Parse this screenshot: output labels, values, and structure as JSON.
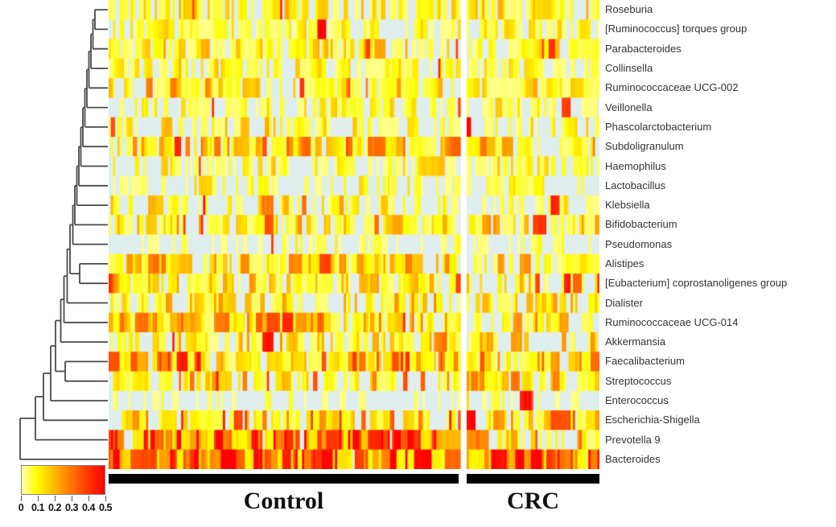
{
  "figure": {
    "kind": "clustered-abundance-heatmap",
    "background": "#ffffff"
  },
  "chart_data": {
    "type": "heatmap",
    "title": "",
    "rows": [
      "Roseburia",
      "[Ruminococcus] torques group",
      "Parabacteroides",
      "Collinsella",
      "Ruminococcaceae UCG-002",
      "Veillonella",
      "Phascolarctobacterium",
      "Subdoligranulum",
      "Haemophilus",
      "Lactobacillus",
      "Klebsiella",
      "Bifidobacterium",
      "Pseudomonas",
      "Alistipes",
      "[Eubacterium] coprostanoligenes group",
      "Dialister",
      "Ruminococcaceae UCG-014",
      "Akkermansia",
      "Faecalibacterium",
      "Streptococcus",
      "Enterococcus",
      "Escherichia-Shigella",
      "Prevotella 9",
      "Bacteroides"
    ],
    "col_groups": [
      {
        "label": "Control",
        "n_samples": 160
      },
      {
        "label": "CRC",
        "n_samples": 60
      }
    ],
    "legend": {
      "min": 0,
      "max": 0.5,
      "tick_labels": [
        "0",
        "0.1",
        "0.2",
        "0.3",
        "0.4",
        "0.5"
      ],
      "gradient_stops": [
        {
          "pos": 0.0,
          "color": "#FFFFB3"
        },
        {
          "pos": 0.18,
          "color": "#FFFF00"
        },
        {
          "pos": 0.45,
          "color": "#FFA500"
        },
        {
          "pos": 0.75,
          "color": "#FF4500"
        },
        {
          "pos": 1.0,
          "color": "#FF0000"
        }
      ],
      "zero_color": "#E0EEEE"
    },
    "row_profiles": [
      {
        "name": "Roseburia",
        "control": {
          "p0": 0.28,
          "mean": 0.09,
          "sp": 0.02
        },
        "crc": {
          "p0": 0.34,
          "mean": 0.08,
          "sp": 0.02
        }
      },
      {
        "name": "[Ruminococcus] torques group",
        "control": {
          "p0": 0.42,
          "mean": 0.06,
          "sp": 0.01
        },
        "crc": {
          "p0": 0.4,
          "mean": 0.06,
          "sp": 0.01
        }
      },
      {
        "name": "Parabacteroides",
        "control": {
          "p0": 0.32,
          "mean": 0.08,
          "sp": 0.02
        },
        "crc": {
          "p0": 0.35,
          "mean": 0.07,
          "sp": 0.02
        }
      },
      {
        "name": "Collinsella",
        "control": {
          "p0": 0.4,
          "mean": 0.07,
          "sp": 0.01
        },
        "crc": {
          "p0": 0.42,
          "mean": 0.06,
          "sp": 0.01
        }
      },
      {
        "name": "Ruminococcaceae UCG-002",
        "control": {
          "p0": 0.25,
          "mean": 0.1,
          "sp": 0.02
        },
        "crc": {
          "p0": 0.34,
          "mean": 0.08,
          "sp": 0.02
        }
      },
      {
        "name": "Veillonella",
        "control": {
          "p0": 0.5,
          "mean": 0.06,
          "sp": 0.02
        },
        "crc": {
          "p0": 0.45,
          "mean": 0.06,
          "sp": 0.02
        }
      },
      {
        "name": "Phascolarctobacterium",
        "control": {
          "p0": 0.45,
          "mean": 0.07,
          "sp": 0.02
        },
        "crc": {
          "p0": 0.48,
          "mean": 0.06,
          "sp": 0.02
        }
      },
      {
        "name": "Subdoligranulum",
        "control": {
          "p0": 0.15,
          "mean": 0.12,
          "sp": 0.03
        },
        "crc": {
          "p0": 0.2,
          "mean": 0.11,
          "sp": 0.02
        }
      },
      {
        "name": "Haemophilus",
        "control": {
          "p0": 0.55,
          "mean": 0.06,
          "sp": 0.02
        },
        "crc": {
          "p0": 0.5,
          "mean": 0.07,
          "sp": 0.02
        }
      },
      {
        "name": "Lactobacillus",
        "control": {
          "p0": 0.52,
          "mean": 0.06,
          "sp": 0.02
        },
        "crc": {
          "p0": 0.5,
          "mean": 0.06,
          "sp": 0.02
        }
      },
      {
        "name": "Klebsiella",
        "control": {
          "p0": 0.48,
          "mean": 0.08,
          "sp": 0.05
        },
        "crc": {
          "p0": 0.5,
          "mean": 0.07,
          "sp": 0.04
        }
      },
      {
        "name": "Bifidobacterium",
        "control": {
          "p0": 0.3,
          "mean": 0.09,
          "sp": 0.02
        },
        "crc": {
          "p0": 0.32,
          "mean": 0.09,
          "sp": 0.02
        }
      },
      {
        "name": "Pseudomonas",
        "control": {
          "p0": 0.82,
          "mean": 0.04,
          "sp": 0.05
        },
        "crc": {
          "p0": 0.85,
          "mean": 0.04,
          "sp": 0.04
        }
      },
      {
        "name": "Alistipes",
        "control": {
          "p0": 0.2,
          "mean": 0.11,
          "sp": 0.03
        },
        "crc": {
          "p0": 0.25,
          "mean": 0.1,
          "sp": 0.02
        }
      },
      {
        "name": "[Eubacterium] coprostanoligenes group",
        "control": {
          "p0": 0.3,
          "mean": 0.09,
          "sp": 0.02
        },
        "crc": {
          "p0": 0.35,
          "mean": 0.08,
          "sp": 0.02
        }
      },
      {
        "name": "Dialister",
        "control": {
          "p0": 0.35,
          "mean": 0.1,
          "sp": 0.03
        },
        "crc": {
          "p0": 0.4,
          "mean": 0.09,
          "sp": 0.03
        }
      },
      {
        "name": "Ruminococcaceae UCG-014",
        "control": {
          "p0": 0.22,
          "mean": 0.12,
          "sp": 0.03
        },
        "crc": {
          "p0": 0.28,
          "mean": 0.1,
          "sp": 0.02
        }
      },
      {
        "name": "Akkermansia",
        "control": {
          "p0": 0.4,
          "mean": 0.09,
          "sp": 0.03
        },
        "crc": {
          "p0": 0.42,
          "mean": 0.09,
          "sp": 0.03
        }
      },
      {
        "name": "Faecalibacterium",
        "control": {
          "p0": 0.08,
          "mean": 0.15,
          "sp": 0.04
        },
        "crc": {
          "p0": 0.12,
          "mean": 0.14,
          "sp": 0.03
        }
      },
      {
        "name": "Streptococcus",
        "control": {
          "p0": 0.28,
          "mean": 0.11,
          "sp": 0.04
        },
        "crc": {
          "p0": 0.25,
          "mean": 0.12,
          "sp": 0.04
        }
      },
      {
        "name": "Enterococcus",
        "control": {
          "p0": 0.85,
          "mean": 0.03,
          "sp": 0.02
        },
        "crc": {
          "p0": 0.8,
          "mean": 0.05,
          "sp": 0.03
        }
      },
      {
        "name": "Escherichia-Shigella",
        "control": {
          "p0": 0.28,
          "mean": 0.14,
          "sp": 0.08
        },
        "crc": {
          "p0": 0.35,
          "mean": 0.13,
          "sp": 0.07
        }
      },
      {
        "name": "Prevotella 9",
        "control": {
          "p0": 0.1,
          "mean": 0.28,
          "sp": 0.15
        },
        "crc": {
          "p0": 0.45,
          "mean": 0.14,
          "sp": 0.06
        }
      },
      {
        "name": "Bacteroides",
        "control": {
          "p0": 0.03,
          "mean": 0.28,
          "sp": 0.12
        },
        "crc": {
          "p0": 0.04,
          "mean": 0.3,
          "sp": 0.12
        }
      }
    ],
    "notable_blocks": [
      {
        "row": 20,
        "group": "crc",
        "from": 24,
        "to": 29,
        "value": 0.47
      },
      {
        "row": 22,
        "group": "crc",
        "from": 0,
        "to": 9,
        "value": 0.27
      },
      {
        "row": 10,
        "group": "control",
        "from": 70,
        "to": 74,
        "value": 0.3
      }
    ],
    "seed": 42
  },
  "dendrogram": {
    "color": "#4a4a4a",
    "stroke_width": 1.8,
    "merges": [
      [
        "l0",
        "l1",
        118
      ],
      [
        "m0",
        "l2",
        115.5
      ],
      [
        "m1",
        "l3",
        113
      ],
      [
        "m2",
        "l4",
        110.5
      ],
      [
        "m3",
        "l5",
        108
      ],
      [
        "m4",
        "l6",
        105.5
      ],
      [
        "m5",
        "l7",
        103
      ],
      [
        "m6",
        "l8",
        100.5
      ],
      [
        "m7",
        "l9",
        98
      ],
      [
        "m8",
        "l10",
        95.5
      ],
      [
        "m9",
        "l11",
        93
      ],
      [
        "m10",
        "l12",
        90.5
      ],
      [
        "l13",
        "l14",
        99
      ],
      [
        "m11",
        "m12",
        87
      ],
      [
        "m13",
        "l15",
        83.5
      ],
      [
        "m14",
        "l16",
        79.5
      ],
      [
        "m15",
        "l17",
        75.5
      ],
      [
        "l18",
        "l19",
        81
      ],
      [
        "m16",
        "m17",
        69
      ],
      [
        "m18",
        "l20",
        63
      ],
      [
        "m19",
        "l21",
        54
      ],
      [
        "m20",
        "l22",
        44
      ],
      [
        "m21",
        "l23",
        25
      ]
    ]
  },
  "layout_labels": {
    "control": "Control",
    "crc": "CRC"
  }
}
